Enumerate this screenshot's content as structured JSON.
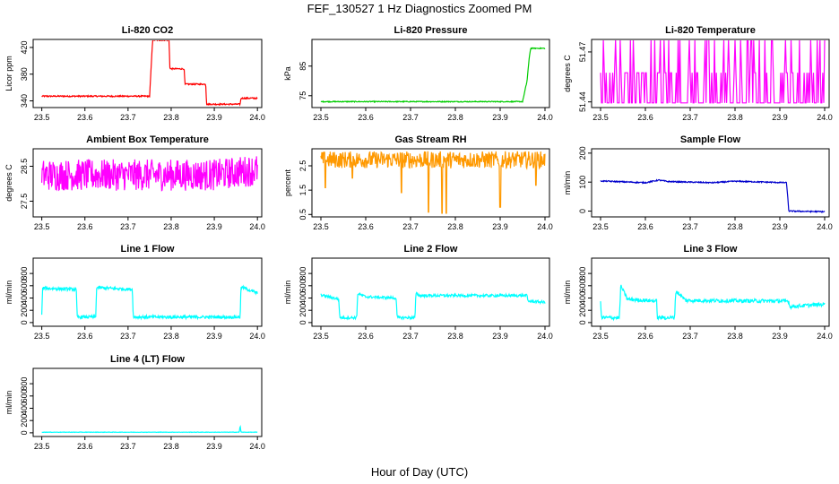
{
  "figure": {
    "title": "FEF_130527  1 Hz Diagnostics Zoomed PM",
    "xlabel": "Hour of Day (UTC)"
  },
  "chart_data": [
    {
      "type": "line",
      "title": "Li-820 CO2",
      "ylabel": "Licor ppm",
      "xlim": [
        23.48,
        24.01
      ],
      "ylim": [
        330,
        432
      ],
      "xticks": [
        "23.5",
        "23.6",
        "23.7",
        "23.8",
        "23.9",
        "24.0"
      ],
      "yticks": [
        "340",
        "380",
        "420"
      ],
      "color": "#ff0000",
      "points": [
        [
          23.5,
          347
        ],
        [
          23.75,
          347
        ],
        [
          23.757,
          431
        ],
        [
          23.795,
          431
        ],
        [
          23.797,
          388
        ],
        [
          23.83,
          388
        ],
        [
          23.832,
          365
        ],
        [
          23.88,
          365
        ],
        [
          23.882,
          335
        ],
        [
          23.96,
          335
        ],
        [
          23.962,
          344
        ],
        [
          24.0,
          344
        ]
      ],
      "noise": 1
    },
    {
      "type": "line",
      "title": "Li-820 Pressure",
      "ylabel": "kPa",
      "xlim": [
        23.48,
        24.01
      ],
      "ylim": [
        71,
        94
      ],
      "xticks": [
        "23.5",
        "23.6",
        "23.7",
        "23.8",
        "23.9",
        "24.0"
      ],
      "yticks": [
        "75",
        "85"
      ],
      "color": "#00cc00",
      "points": [
        [
          23.5,
          73
        ],
        [
          23.95,
          73
        ],
        [
          23.96,
          80
        ],
        [
          23.965,
          88
        ],
        [
          23.968,
          91
        ],
        [
          24.0,
          91
        ]
      ],
      "noise": 0.15
    },
    {
      "type": "line",
      "title": "Li-820 Temperature",
      "ylabel": "degrees C",
      "xlim": [
        23.48,
        24.01
      ],
      "ylim": [
        51.4366,
        51.4775
      ],
      "xticks": [
        "23.5",
        "23.6",
        "23.7",
        "23.8",
        "23.9",
        "24.0"
      ],
      "yticks": [
        "51.44",
        "51.47"
      ],
      "color": "#ff00ff",
      "levels": [
        51.4394,
        51.4575,
        51.4775
      ],
      "mode": "digital"
    },
    {
      "type": "line",
      "title": "Ambient Box Temperature",
      "ylabel": "degrees C",
      "xlim": [
        23.48,
        24.01
      ],
      "ylim": [
        27.05,
        29.0
      ],
      "xticks": [
        "23.5",
        "23.6",
        "23.7",
        "23.8",
        "23.9",
        "24.0"
      ],
      "yticks": [
        "27.5",
        "28.5"
      ],
      "color": "#ff00ff",
      "points": [
        [
          23.5,
          28.25
        ],
        [
          23.9,
          28.25
        ],
        [
          24.0,
          28.4
        ]
      ],
      "noise": 0.45
    },
    {
      "type": "line",
      "title": "Gas Stream RH",
      "ylabel": "percent",
      "xlim": [
        23.48,
        24.01
      ],
      "ylim": [
        0.4,
        3.2
      ],
      "xticks": [
        "23.5",
        "23.6",
        "23.7",
        "23.8",
        "23.9",
        "24.0"
      ],
      "yticks": [
        "0.5",
        "1.5",
        "2.5"
      ],
      "color": "#ff9900",
      "points": [
        [
          23.5,
          2.75
        ],
        [
          24.0,
          2.75
        ]
      ],
      "noise": 0.35,
      "dips": [
        [
          23.51,
          1.6
        ],
        [
          23.57,
          2.0
        ],
        [
          23.68,
          1.4
        ],
        [
          23.74,
          0.6
        ],
        [
          23.77,
          0.55
        ],
        [
          23.78,
          0.55
        ],
        [
          23.9,
          0.8
        ],
        [
          23.98,
          1.7
        ]
      ]
    },
    {
      "type": "line",
      "title": "Sample Flow",
      "ylabel": "ml/min",
      "xlim": [
        23.48,
        24.01
      ],
      "ylim": [
        -20,
        215
      ],
      "xticks": [
        "23.5",
        "23.6",
        "23.7",
        "23.8",
        "23.9",
        "24.0"
      ],
      "yticks": [
        "0",
        "100",
        "200"
      ],
      "color": "#0000cc",
      "points": [
        [
          23.5,
          104
        ],
        [
          23.6,
          98
        ],
        [
          23.63,
          107
        ],
        [
          23.65,
          102
        ],
        [
          23.75,
          98
        ],
        [
          23.8,
          103
        ],
        [
          23.915,
          98
        ],
        [
          23.92,
          0
        ],
        [
          24.0,
          -2
        ]
      ],
      "noise": 2
    },
    {
      "type": "line",
      "title": "Line 1 Flow",
      "ylabel": "ml/min",
      "xlim": [
        23.48,
        24.01
      ],
      "ylim": [
        -60,
        1050
      ],
      "xticks": [
        "23.5",
        "23.6",
        "23.7",
        "23.8",
        "23.9",
        "24.0"
      ],
      "yticks": [
        "0",
        "200",
        "400",
        "600",
        "800"
      ],
      "color": "#00ffff",
      "points": [
        [
          23.5,
          120
        ],
        [
          23.502,
          560
        ],
        [
          23.58,
          540
        ],
        [
          23.582,
          90
        ],
        [
          23.625,
          90
        ],
        [
          23.627,
          570
        ],
        [
          23.71,
          540
        ],
        [
          23.712,
          90
        ],
        [
          23.96,
          90
        ],
        [
          23.962,
          580
        ],
        [
          24.0,
          480
        ]
      ],
      "noise": 25
    },
    {
      "type": "line",
      "title": "Line 2 Flow",
      "ylabel": "ml/min",
      "xlim": [
        23.48,
        24.01
      ],
      "ylim": [
        -60,
        1050
      ],
      "xticks": [
        "23.5",
        "23.6",
        "23.7",
        "23.8",
        "23.9",
        "24.0"
      ],
      "yticks": [
        "0",
        "200",
        "400",
        "600",
        "800"
      ],
      "color": "#00ffff",
      "points": [
        [
          23.5,
          450
        ],
        [
          23.54,
          380
        ],
        [
          23.542,
          80
        ],
        [
          23.58,
          80
        ],
        [
          23.582,
          470
        ],
        [
          23.6,
          420
        ],
        [
          23.668,
          400
        ],
        [
          23.67,
          80
        ],
        [
          23.71,
          80
        ],
        [
          23.712,
          480
        ],
        [
          23.72,
          440
        ],
        [
          23.96,
          440
        ],
        [
          23.962,
          350
        ],
        [
          24.0,
          330
        ]
      ],
      "noise": 22
    },
    {
      "type": "line",
      "title": "Line 3 Flow",
      "ylabel": "ml/min",
      "xlim": [
        23.48,
        24.01
      ],
      "ylim": [
        -60,
        1050
      ],
      "xticks": [
        "23.5",
        "23.6",
        "23.7",
        "23.8",
        "23.9",
        "24.0"
      ],
      "yticks": [
        "0",
        "200",
        "400",
        "600",
        "800"
      ],
      "color": "#00ffff",
      "points": [
        [
          23.5,
          360
        ],
        [
          23.502,
          80
        ],
        [
          23.542,
          80
        ],
        [
          23.545,
          600
        ],
        [
          23.56,
          380
        ],
        [
          23.625,
          350
        ],
        [
          23.627,
          80
        ],
        [
          23.665,
          80
        ],
        [
          23.668,
          520
        ],
        [
          23.69,
          360
        ],
        [
          23.92,
          350
        ],
        [
          23.922,
          260
        ],
        [
          24.0,
          300
        ]
      ],
      "noise": 30
    },
    {
      "type": "line",
      "title": "Line 4 (LT) Flow",
      "ylabel": "ml/min",
      "xlim": [
        23.48,
        24.01
      ],
      "ylim": [
        -60,
        1050
      ],
      "xticks": [
        "23.5",
        "23.6",
        "23.7",
        "23.8",
        "23.9",
        "24.0"
      ],
      "yticks": [
        "0",
        "200",
        "400",
        "600",
        "800"
      ],
      "color": "#00ffff",
      "points": [
        [
          23.5,
          10
        ],
        [
          23.958,
          10
        ],
        [
          23.96,
          120
        ],
        [
          23.962,
          10
        ],
        [
          24.0,
          10
        ]
      ],
      "noise": 3
    }
  ]
}
